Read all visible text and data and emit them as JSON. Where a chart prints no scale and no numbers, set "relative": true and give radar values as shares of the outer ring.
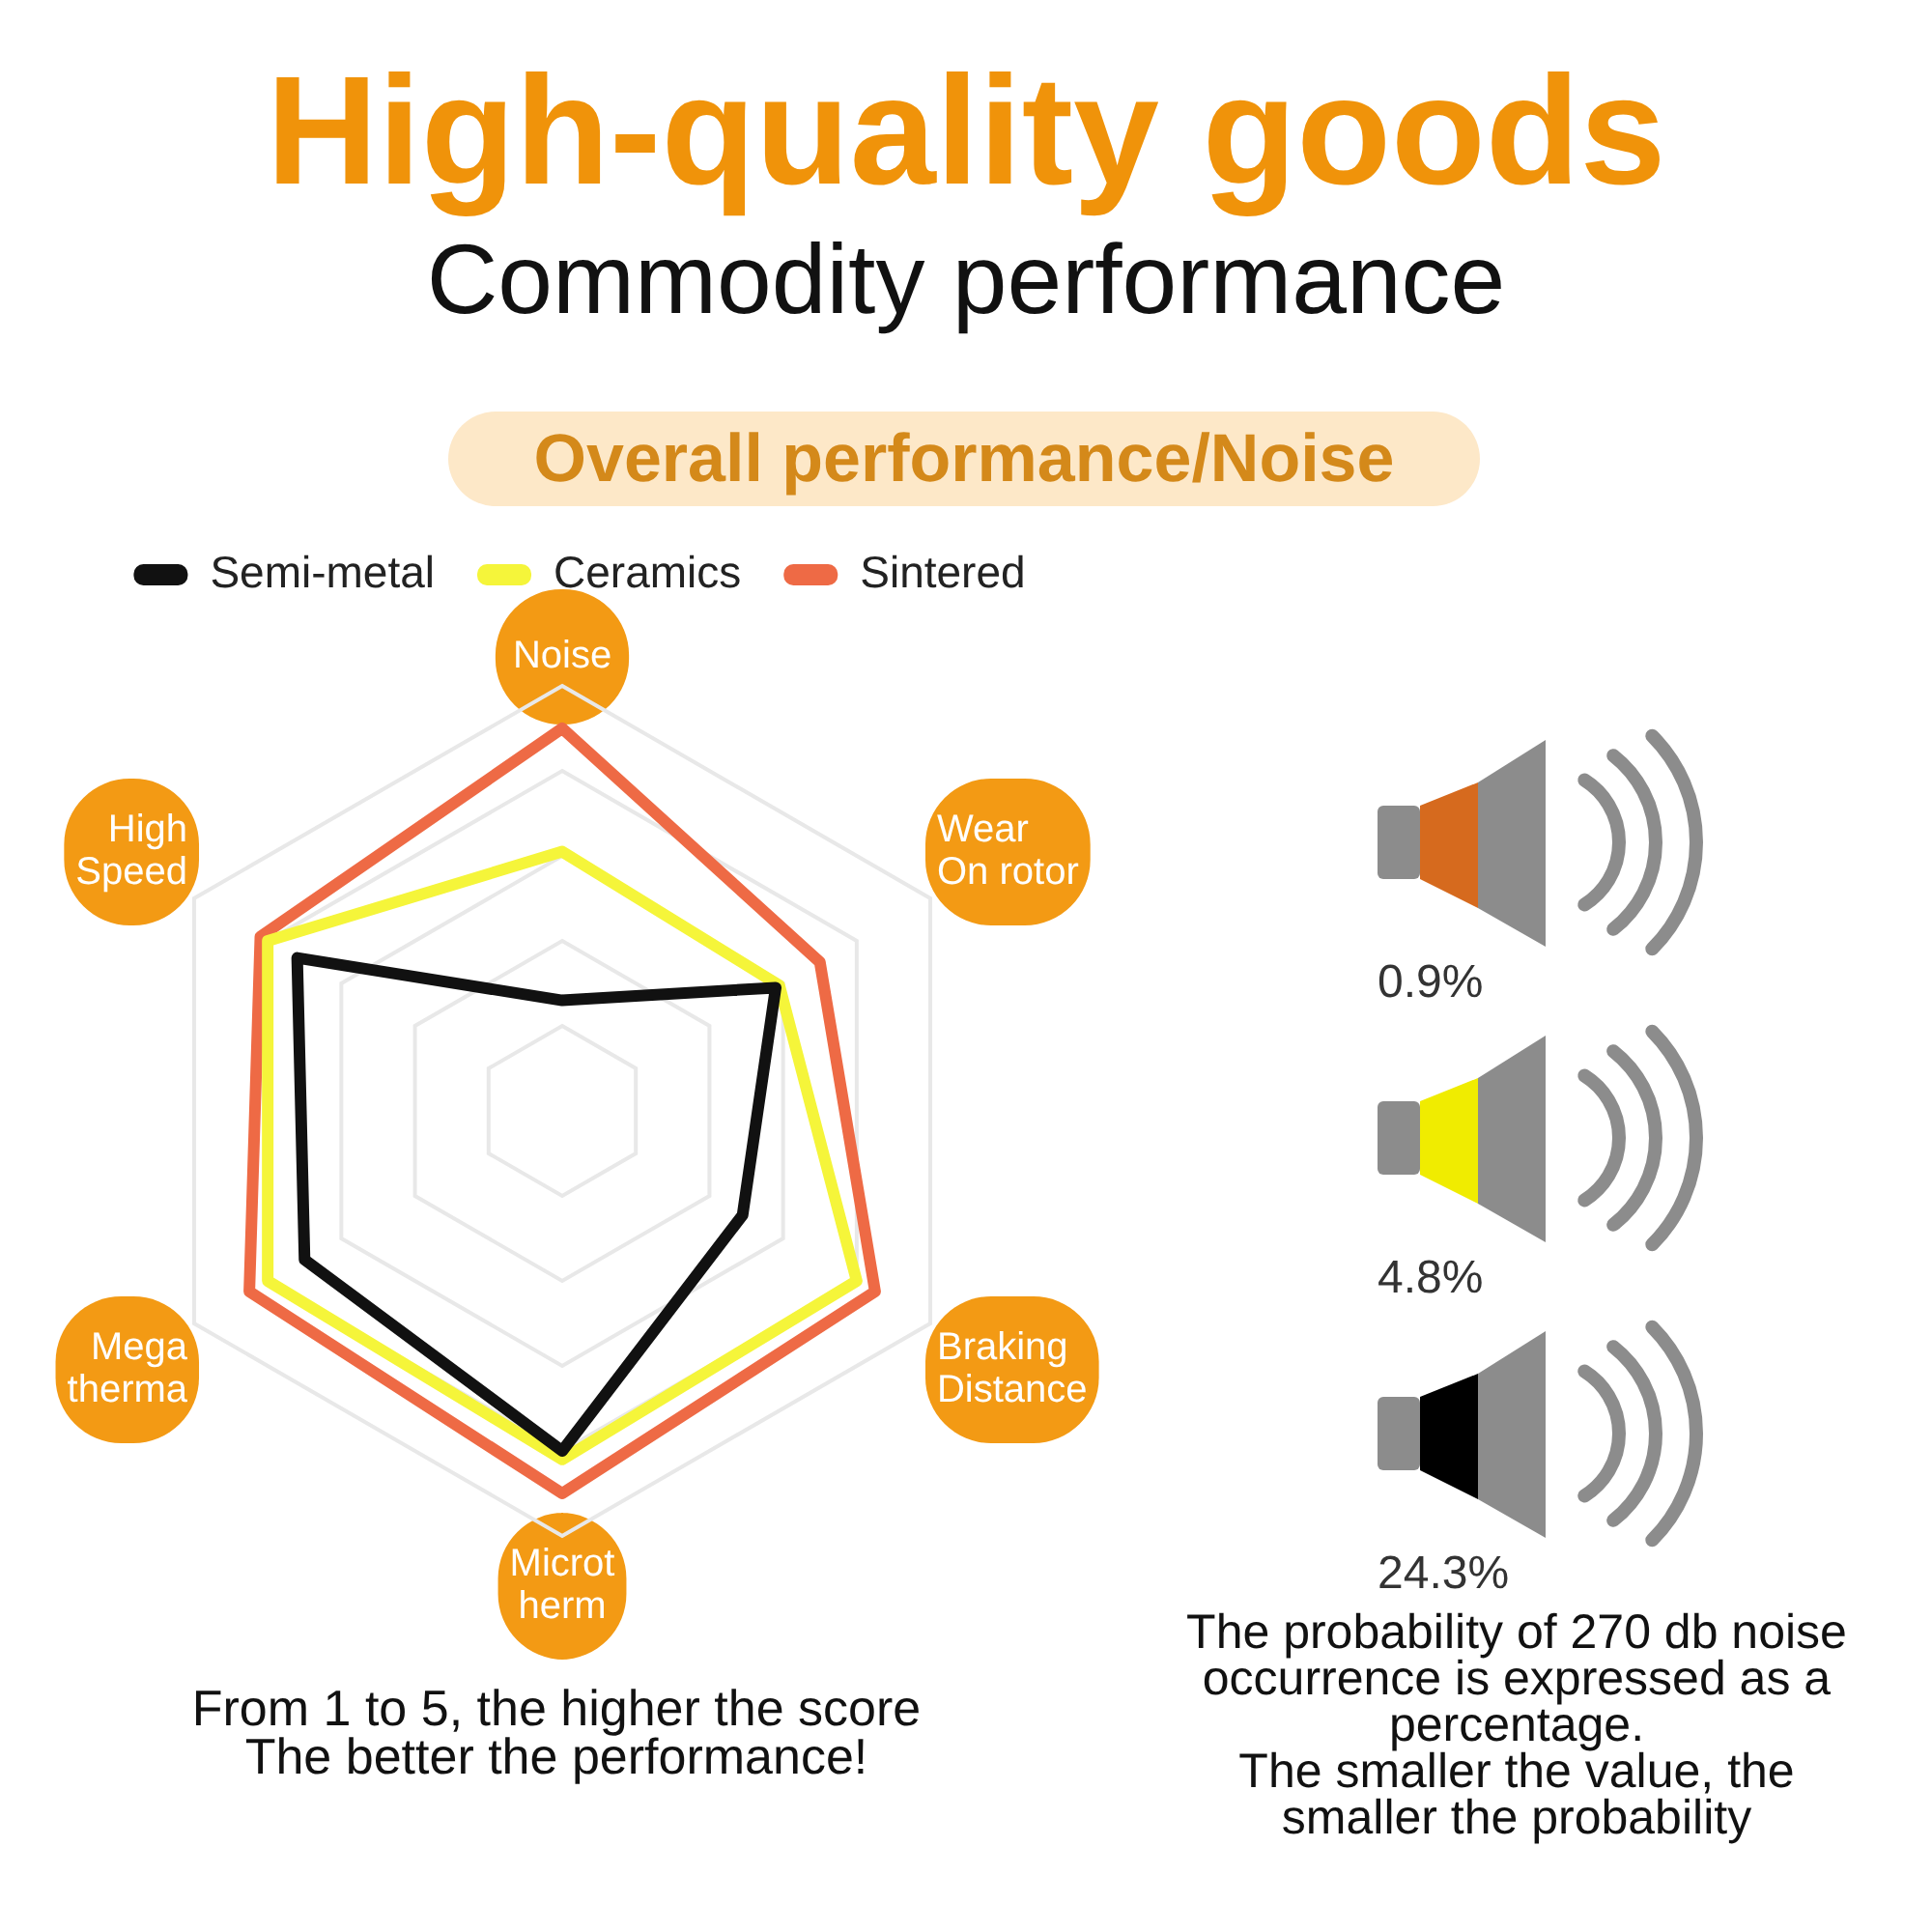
{
  "chart_data": [
    {
      "type": "radar",
      "title": "High-quality goods",
      "subtitle": "Commodity performance",
      "categories": [
        "Noise",
        "Wear\nOn rotor",
        "Braking\nDistance",
        "Microt\nherm",
        "Mega\ntherma",
        "High\nSpeed"
      ],
      "relative": true,
      "series": [
        {
          "name": "Semi-metal",
          "color": "#111111",
          "values": [
            0.26,
            0.58,
            0.49,
            0.8,
            0.7,
            0.72
          ]
        },
        {
          "name": "Ceramics",
          "color": "#f5f53a",
          "values": [
            0.61,
            0.59,
            0.8,
            0.82,
            0.8,
            0.8
          ]
        },
        {
          "name": "Sintered",
          "color": "#ee6a45",
          "values": [
            0.9,
            0.7,
            0.85,
            0.9,
            0.85,
            0.82
          ]
        }
      ],
      "legend": "top",
      "grid": true,
      "marker": "none",
      "line_style": "solid",
      "annotations": [
        "Overall performance/Noise",
        "From 1 to 5, the higher the score",
        "The better the performance!"
      ]
    },
    {
      "type": "other",
      "colors": [
        "#d66a1e",
        "#f0ec00",
        "#000000"
      ],
      "annotations": [
        "0.9%",
        "4.8%",
        "24.3%",
        "The probability of 270 db noise occurrence is expressed as a percentage.",
        "The smaller the value, the smaller the probability"
      ]
    }
  ]
}
